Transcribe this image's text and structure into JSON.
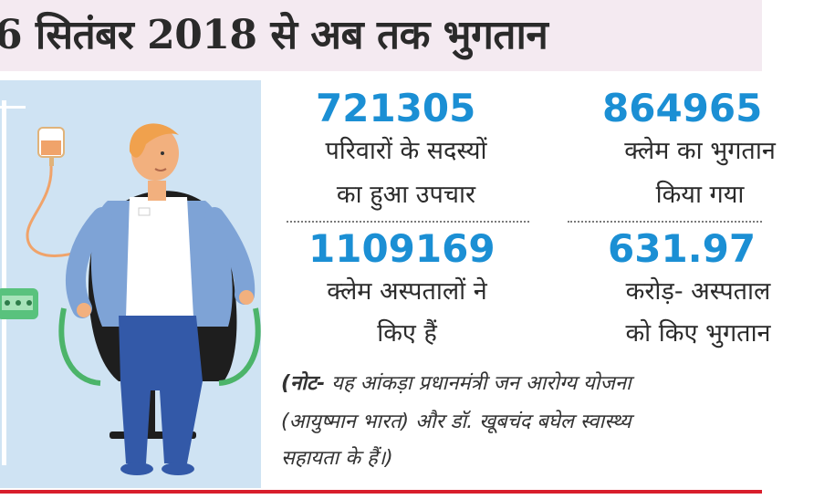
{
  "header": {
    "title": "6 सितंबर 2018 से अब तक भुगतान"
  },
  "stats": [
    {
      "value": "721305",
      "label_line1": "परिवारों के सदस्यों",
      "label_line2": "का हुआ उपचार"
    },
    {
      "value": "864965",
      "label_line1": "क्लेम का भुगतान",
      "label_line2": "किया गया"
    },
    {
      "value": "1109169",
      "label_line1": "क्लेम अस्पतालों ने",
      "label_line2": "किए हैं"
    },
    {
      "value": "631.97",
      "label_line1": "करोड़- अस्पताल",
      "label_line2": "को किए भुगतान"
    }
  ],
  "note": {
    "prefix": "(नोट-",
    "line1": " यह आंकड़ा प्रधानमंत्री जन आरोग्य योजना",
    "line2": "(आयुष्मान भारत) और डॉ. खूबचंद बघेल स्वास्थ्य",
    "line3": "सहायता के हैं।)"
  },
  "colors": {
    "number": "#1b8fd4",
    "accent_rule": "#d81e2c",
    "header_bg": "#f4eaf1",
    "illustration_bg": "#cfe3f3"
  },
  "illustration": {
    "icon": "patient-on-iv-drip-illustration"
  }
}
